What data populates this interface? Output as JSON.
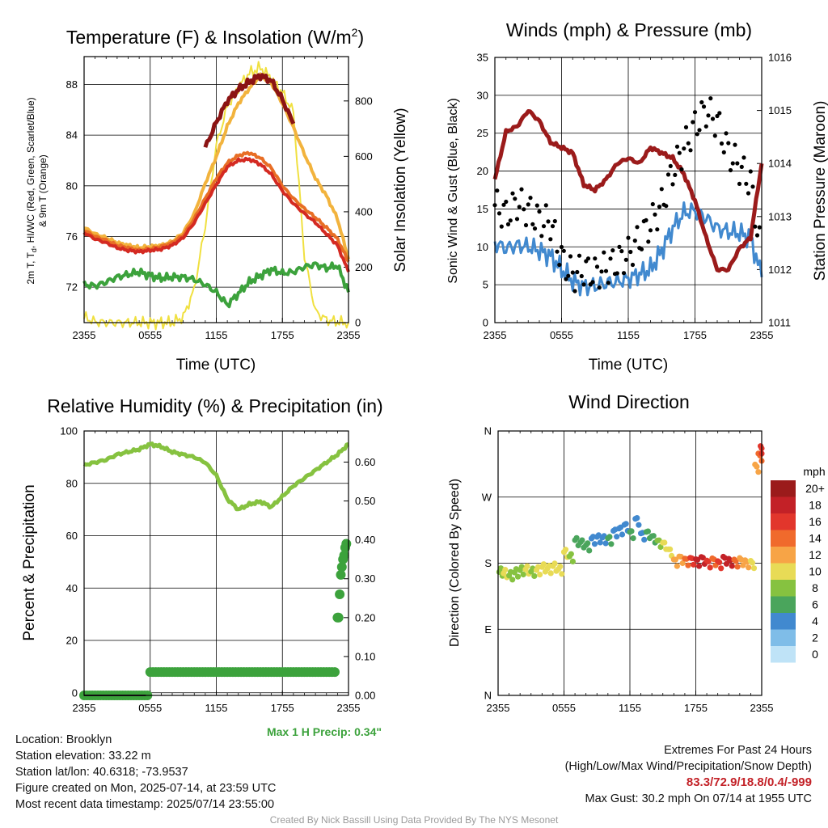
{
  "chart_data": [
    {
      "type": "line",
      "title": "Temperature (F) & Insolation (W/m",
      "title_sup": "2",
      "title_end": ")",
      "xlabel": "Time (UTC)",
      "ylabel_lines": [
        "2m T, T",
        "d",
        ", HI/WC (Red, Green, Scarlet/Blue)",
        "& 9m T (Orange)"
      ],
      "y2label": "Solar Insolation (Yellow)",
      "x_ticks": [
        "2355",
        "0555",
        "1155",
        "1755",
        "2355"
      ],
      "x_range_hours": [
        0,
        24
      ],
      "ylim": [
        69.2,
        90.2
      ],
      "y_ticks": [
        72,
        76,
        80,
        84,
        88
      ],
      "y2lim": [
        0,
        960
      ],
      "y2_ticks": [
        0,
        200,
        400,
        600,
        800
      ],
      "x_hours": [
        0,
        1,
        2,
        3,
        4,
        5,
        6,
        7,
        8,
        9,
        10,
        11,
        12,
        13,
        14,
        15,
        16,
        17,
        18,
        19,
        20,
        21,
        22,
        23,
        24
      ],
      "series": [
        {
          "color": "#f2b33d",
          "values": [
            76.7,
            76.2,
            75.9,
            75.5,
            75.3,
            75.1,
            75.2,
            75.3,
            75.6,
            76.3,
            77.8,
            80.2,
            82.3,
            84.7,
            86.5,
            87.7,
            88.7,
            88.1,
            86.5,
            84.6,
            82.5,
            80.6,
            79.2,
            77.4,
            74.2
          ]
        },
        {
          "color": "#e86e25",
          "values": [
            76.5,
            76.0,
            75.7,
            75.3,
            75.1,
            74.9,
            75.0,
            75.2,
            75.5,
            76.1,
            77.4,
            79.0,
            80.6,
            81.8,
            82.4,
            82.6,
            82.2,
            81.4,
            80.0,
            79.0,
            78.2,
            77.5,
            76.7,
            75.8,
            74.0
          ]
        },
        {
          "color": "#d42a22",
          "values": [
            76.3,
            75.8,
            75.5,
            75.1,
            74.9,
            74.8,
            74.9,
            75.0,
            75.3,
            75.9,
            77.1,
            78.6,
            80.1,
            81.5,
            82.0,
            82.1,
            81.7,
            80.9,
            79.6,
            78.6,
            77.8,
            77.1,
            76.2,
            75.3,
            73.2
          ]
        },
        {
          "color": "#8b1414",
          "values": [
            null,
            null,
            null,
            null,
            null,
            null,
            null,
            null,
            null,
            null,
            null,
            83.0,
            85.0,
            86.7,
            87.6,
            88.2,
            88.7,
            88.3,
            86.8,
            84.9,
            null,
            null,
            null,
            null,
            null
          ]
        },
        {
          "color": "#3ca23c",
          "values": [
            72.2,
            72.1,
            72.4,
            72.8,
            73.0,
            73.2,
            72.9,
            72.7,
            72.8,
            72.8,
            72.6,
            72.2,
            71.6,
            70.6,
            71.5,
            72.4,
            72.9,
            73.4,
            73.1,
            73.2,
            73.6,
            73.8,
            73.5,
            73.7,
            71.6
          ]
        },
        {
          "color": "#f0e040",
          "axis": "y2",
          "values": [
            20,
            3,
            0,
            0,
            0,
            0,
            0,
            0,
            0,
            20,
            120,
            350,
            640,
            780,
            850,
            900,
            920,
            880,
            830,
            760,
            240,
            40,
            10,
            2,
            0
          ]
        }
      ]
    },
    {
      "type": "line",
      "title": "Winds (mph) & Pressure (mb)",
      "xlabel": "Time (UTC)",
      "ylabel": "Sonic Wind & Gust (Blue, Black)",
      "y2label": "Station Pressure (Maroon)",
      "x_ticks": [
        "2355",
        "0555",
        "1155",
        "1755",
        "2355"
      ],
      "ylim": [
        0,
        35
      ],
      "y_ticks": [
        0,
        5,
        10,
        15,
        20,
        25,
        30,
        35
      ],
      "y2lim": [
        1011,
        1016
      ],
      "y2_ticks": [
        1011,
        1012,
        1013,
        1014,
        1015,
        1016
      ],
      "x_hours": [
        0,
        1,
        2,
        3,
        4,
        5,
        6,
        7,
        8,
        9,
        10,
        11,
        12,
        13,
        14,
        15,
        16,
        17,
        18,
        19,
        20,
        21,
        22,
        23,
        24
      ],
      "series": [
        {
          "color": "#4189cf",
          "values": [
            10.5,
            9.8,
            10.2,
            10.0,
            9.5,
            8.8,
            7.0,
            5.5,
            4.8,
            4.8,
            5.2,
            5.4,
            5.8,
            6.4,
            7.0,
            9.5,
            12.5,
            14.5,
            14.8,
            13.8,
            12.5,
            12.0,
            11.8,
            11.2,
            6.0
          ]
        },
        {
          "color": "#000000",
          "values": [
            15.5,
            14.2,
            15.8,
            14.8,
            13.5,
            13.2,
            8.5,
            6.2,
            7.0,
            6.5,
            7.2,
            8.0,
            9.0,
            11.0,
            13.0,
            15.5,
            20.0,
            23.0,
            26.0,
            28.0,
            26.5,
            22.5,
            20.5,
            18.5,
            8.5
          ]
        },
        {
          "color": "#9b1b1b",
          "axis": "y2",
          "values": [
            1013.7,
            1014.6,
            1014.7,
            1015.0,
            1014.8,
            1014.4,
            1014.3,
            1014.2,
            1013.6,
            1013.5,
            1013.7,
            1014.0,
            1014.1,
            1014.0,
            1014.3,
            1014.2,
            1014.1,
            1013.8,
            1013.3,
            1012.6,
            1012.0,
            1012.0,
            1012.4,
            1012.6,
            1014.0
          ]
        }
      ]
    },
    {
      "type": "line",
      "title": "Relative Humidity (%) & Precipitation (in)",
      "ylabel": "Percent & Precipitation",
      "x_ticks": [
        "2355",
        "0555",
        "1155",
        "1755",
        "2355"
      ],
      "ylim": [
        -1,
        100
      ],
      "y_ticks": [
        0,
        20,
        40,
        60,
        80,
        100
      ],
      "y2lim": [
        0,
        0.68
      ],
      "y2_ticks": [
        "0.00",
        "0.10",
        "0.20",
        "0.30",
        "0.40",
        "0.50",
        "0.60"
      ],
      "annotation": "Max 1 H Precip: 0.34\"",
      "x_hours": [
        0,
        1,
        2,
        3,
        4,
        5,
        6,
        7,
        8,
        9,
        10,
        11,
        12,
        13,
        14,
        15,
        16,
        17,
        18,
        19,
        20,
        21,
        22,
        23,
        24
      ],
      "series": [
        {
          "color": "#86c240",
          "values": [
            87,
            88,
            89,
            91,
            92,
            93,
            95,
            94,
            92,
            91,
            90,
            88,
            83,
            74,
            70,
            72,
            73,
            71,
            75,
            79,
            82,
            85,
            88,
            91,
            95
          ]
        },
        {
          "color": "#3ca23c",
          "axis": "y2",
          "marker": "circle",
          "values": [
            0,
            0,
            0,
            0,
            0,
            0,
            0.06,
            0.06,
            0.06,
            0.06,
            0.06,
            0.06,
            0.06,
            0.06,
            0.06,
            0.06,
            0.06,
            0.06,
            0.06,
            0.06,
            0.06,
            0.06,
            0.06,
            0.2,
            0.4
          ]
        },
        {
          "color": "#222222",
          "axis": "y2",
          "values": [
            0,
            0,
            0,
            0,
            0,
            0,
            null,
            null,
            null,
            null,
            null,
            null,
            null,
            null,
            null,
            null,
            null,
            null,
            null,
            null,
            null,
            null,
            null,
            null,
            null
          ]
        }
      ]
    },
    {
      "type": "scatter",
      "title": "Wind Direction",
      "ylabel": "Direction (Colored By Speed)",
      "x_ticks": [
        "2355",
        "0555",
        "1155",
        "1755",
        "2355"
      ],
      "y_ticks": [
        "N",
        "E",
        "S",
        "W",
        "N"
      ],
      "ylim": [
        0,
        360
      ],
      "legend_title": "mph",
      "legend_labels": [
        "20+",
        "18",
        "16",
        "14",
        "12",
        "10",
        "8",
        "6",
        "4",
        "2",
        "0"
      ],
      "legend_colors": [
        "#9b1b1b",
        "#c32127",
        "#e2362c",
        "#f06a2c",
        "#f7a446",
        "#e8db56",
        "#86c240",
        "#4aa55c",
        "#4189cf",
        "#7fbde8",
        "#bfe3f7"
      ],
      "points_hours": [
        0.1,
        0.5,
        1,
        1.5,
        2,
        2.5,
        3,
        3.5,
        4,
        4.5,
        5,
        5.5,
        6,
        6.5,
        7,
        7.5,
        8,
        8.5,
        9,
        9.5,
        10,
        10.5,
        11,
        11.5,
        12,
        12.5,
        13,
        13.5,
        14,
        14.5,
        15,
        15.5,
        16,
        16.5,
        17,
        17.5,
        18,
        18.5,
        19,
        19.5,
        20,
        20.5,
        21,
        21.5,
        22,
        22.5,
        23,
        23.4,
        23.7,
        23.9
      ],
      "points_dir": [
        168,
        166,
        163,
        167,
        170,
        171,
        168,
        170,
        174,
        172,
        175,
        171,
        194,
        188,
        210,
        207,
        203,
        212,
        214,
        213,
        212,
        222,
        225,
        230,
        220,
        238,
        218,
        220,
        214,
        208,
        205,
        196,
        182,
        186,
        183,
        184,
        182,
        185,
        180,
        183,
        179,
        185,
        182,
        181,
        183,
        180,
        179,
        310,
        325,
        335
      ],
      "points_speed": [
        8,
        9,
        8,
        8,
        7,
        9,
        8,
        9,
        9,
        10,
        9,
        9,
        9,
        8,
        6,
        5,
        5,
        4,
        4,
        4,
        5,
        4,
        4,
        4,
        5,
        4,
        4,
        5,
        6,
        8,
        10,
        10,
        12,
        12,
        14,
        16,
        18,
        18,
        16,
        14,
        16,
        18,
        17,
        14,
        12,
        12,
        10,
        12,
        14,
        16
      ]
    }
  ],
  "info": {
    "location": "Location: Brooklyn",
    "elevation": "Station elevation: 33.22 m",
    "latlon": "Station lat/lon: 40.6318; -73.9537",
    "created": "Figure created on Mon, 2025-07-14, at 23:59 UTC",
    "recent": "Most recent data timestamp: 2025/07/14 23:55:00",
    "extremes_title": "Extremes For Past 24 Hours",
    "extremes_sub": "(High/Low/Max Wind/Precipitation/Snow Depth)",
    "extremes_values": "83.3/72.9/18.8/0.4/-999",
    "max_gust": "Max Gust: 30.2 mph On 07/14 at 1955 UTC",
    "credit": "Created By Nick Bassill Using Data Provided By The NYS Mesonet"
  }
}
